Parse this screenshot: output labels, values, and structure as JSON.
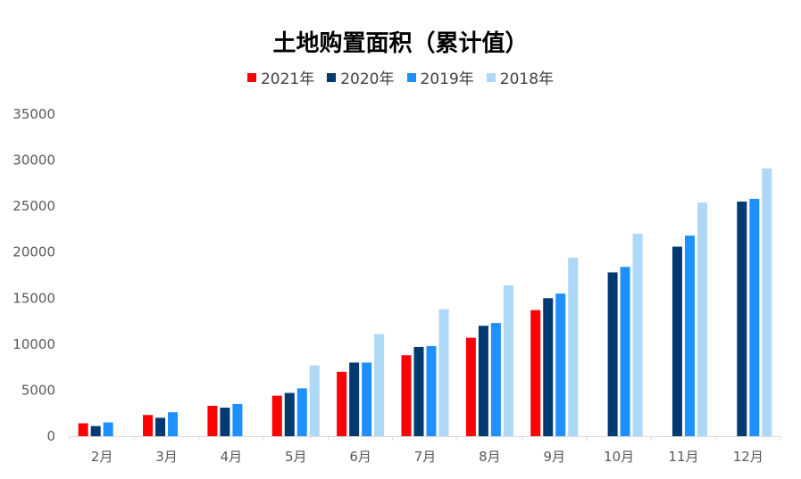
{
  "chart_data": {
    "type": "bar",
    "title": "土地购置面积（累计值）",
    "categories": [
      "2月",
      "3月",
      "4月",
      "5月",
      "6月",
      "7月",
      "8月",
      "9月",
      "10月",
      "11月",
      "12月"
    ],
    "series": [
      {
        "name": "2021年",
        "color": "#ff0000",
        "values": [
          1400,
          2300,
          3300,
          4400,
          7000,
          8800,
          10700,
          13700,
          null,
          null,
          null
        ]
      },
      {
        "name": "2020年",
        "color": "#003a70",
        "values": [
          1100,
          2000,
          3100,
          4700,
          8000,
          9700,
          12000,
          15000,
          17800,
          20600,
          25500
        ]
      },
      {
        "name": "2019年",
        "color": "#1e90ff",
        "values": [
          1500,
          2600,
          3500,
          5200,
          8000,
          9800,
          12300,
          15500,
          18400,
          21800,
          25800
        ]
      },
      {
        "name": "2018年",
        "color": "#add8f7",
        "values": [
          null,
          null,
          null,
          7700,
          11100,
          13800,
          16400,
          19400,
          22000,
          25400,
          29100
        ]
      }
    ],
    "yticks": [
      "0",
      "5000",
      "10000",
      "15000",
      "20000",
      "25000",
      "30000",
      "35000"
    ],
    "ylim": [
      0,
      35000
    ],
    "grid": false,
    "legend_position": "top"
  }
}
